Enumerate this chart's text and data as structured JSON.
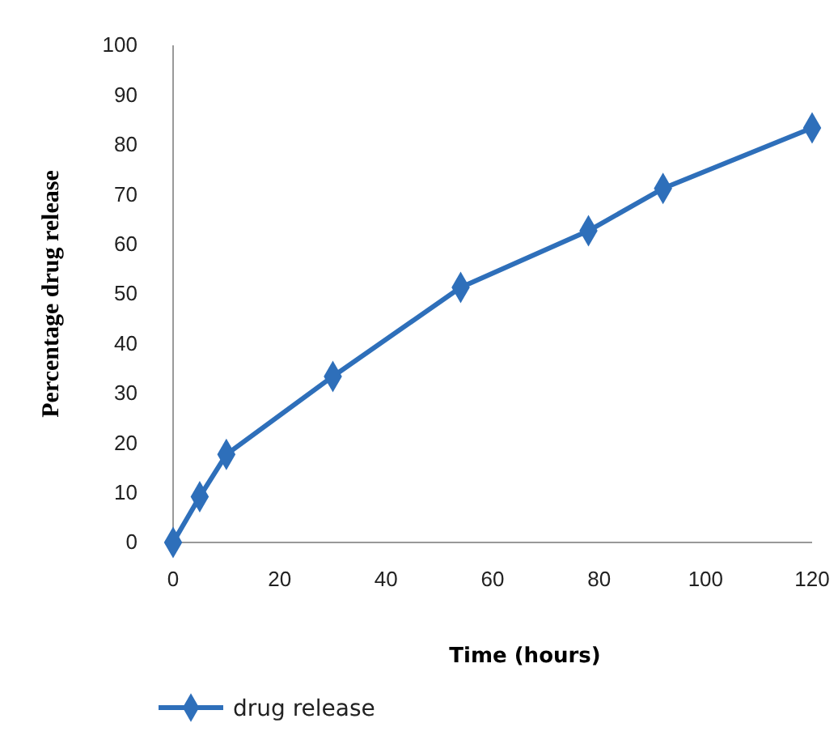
{
  "chart_data": {
    "type": "line",
    "xlabel": "Time (hours)",
    "ylabel": "Percentage drug release",
    "x": [
      0,
      5,
      10,
      30,
      54,
      78,
      92,
      120
    ],
    "series": [
      {
        "name": "drug release",
        "color": "#2e6fba",
        "values": [
          0,
          9.2,
          17.7,
          33.4,
          51.3,
          62.7,
          71.2,
          83.4
        ]
      }
    ],
    "xlim": [
      0,
      120
    ],
    "xticks": [
      0,
      20,
      40,
      60,
      80,
      100,
      120
    ],
    "ylim": [
      0,
      100
    ],
    "yticks": [
      0,
      10,
      20,
      30,
      40,
      50,
      60,
      70,
      80,
      90,
      100
    ],
    "grid": false,
    "legend": "bottom left",
    "marker": "diamond",
    "line_style": "solid"
  }
}
